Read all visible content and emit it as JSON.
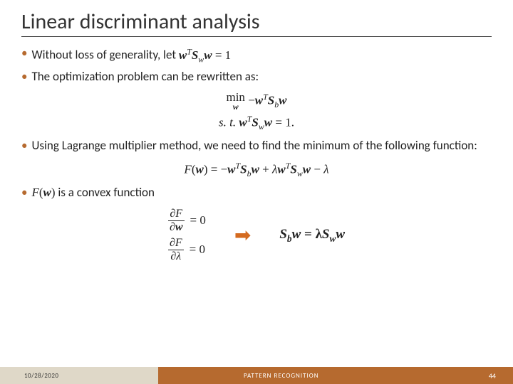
{
  "title": "Linear discriminant analysis",
  "bullets": {
    "b1_prefix": "Without loss of generality, let ",
    "b2": "The optimization problem can be rewritten as:",
    "b3": "Using Lagrange multiplier method, we need to find the minimum of the following function:",
    "b4_suffix": " is a convex function"
  },
  "math": {
    "let_eq_lhs": "w",
    "let_eq_T": "T",
    "let_eq_S": "S",
    "let_eq_wsub": "w",
    "let_eq_rhs": " = 1",
    "min_under": "w",
    "min_label": "min",
    "min_body_neg": " −",
    "Sb": "b",
    "st_label": "s. t.  ",
    "st_rhs": " = 1.",
    "F_label": "F",
    "lambda": "λ",
    "partial": "∂",
    "eq_zero": "= 0",
    "result_lhs_S": "S",
    "result_lhs_b": "b",
    "result_w": "w",
    "result_eq": " = λ",
    "result_Sw_S": "S",
    "result_Sw_w": "w"
  },
  "footer": {
    "date": "10/28/2020",
    "center": "PATTERN RECOGNITION",
    "page": "44"
  },
  "colors": {
    "accent": "#b66a2f",
    "arrow": "#d46a1f",
    "footer_left": "#dfd8c8",
    "text": "#222222"
  }
}
